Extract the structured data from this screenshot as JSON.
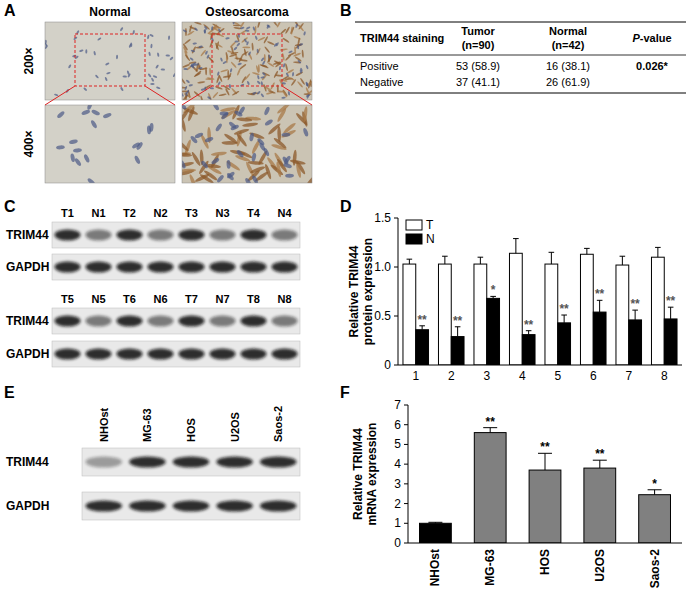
{
  "chart_data": [
    {
      "type": "bar",
      "panel": "D",
      "y_label": "Relative TRIM44 protein expression",
      "categories": [
        "1",
        "2",
        "3",
        "4",
        "5",
        "6",
        "7",
        "8"
      ],
      "series": [
        {
          "name": "T",
          "color": "#ffffff",
          "values": [
            1.03,
            1.03,
            1.03,
            1.14,
            1.03,
            1.13,
            1.02,
            1.1
          ],
          "errors": [
            0.05,
            0.08,
            0.07,
            0.15,
            0.12,
            0.06,
            0.09,
            0.1
          ]
        },
        {
          "name": "N",
          "color": "#000000",
          "values": [
            0.36,
            0.29,
            0.68,
            0.31,
            0.43,
            0.54,
            0.46,
            0.47
          ],
          "errors": [
            0.04,
            0.1,
            0.02,
            0.04,
            0.08,
            0.12,
            0.1,
            0.12
          ]
        }
      ],
      "annotations": [
        "**",
        "**",
        "*",
        "**",
        "**",
        "**",
        "**",
        "**"
      ],
      "ylim": [
        0,
        1.5
      ],
      "yticks": [
        0,
        0.5,
        {
          "value": 1,
          "label": "1.0"
        },
        1.5
      ],
      "legend": "upper left",
      "grid": false
    },
    {
      "type": "bar",
      "panel": "F",
      "y_label": "Relative TRIM44 mRNA expression",
      "categories": [
        "NHOst",
        "MG-63",
        "HOS",
        "U2OS",
        "Saos-2"
      ],
      "values": [
        1.0,
        5.6,
        3.7,
        3.8,
        2.45
      ],
      "errors": [
        0.05,
        0.25,
        0.85,
        0.4,
        0.25
      ],
      "colors": [
        "#000000",
        "#808080",
        "#808080",
        "#808080",
        "#808080"
      ],
      "annotations": [
        null,
        "**",
        "**",
        "**",
        "*"
      ],
      "ylim": [
        0,
        7
      ],
      "yticks": [
        0,
        1,
        2,
        3,
        4,
        5,
        6,
        7
      ],
      "grid": false
    }
  ],
  "panel_a": {
    "panel": "A",
    "columns": [
      "Normal",
      "Osteosarcoma"
    ],
    "rows": [
      "200×",
      "400×"
    ]
  },
  "panel_b": {
    "panel": "B",
    "table": {
      "header": [
        [
          "TRIM44 staining"
        ],
        [
          "Tumor",
          "(n=90)"
        ],
        [
          "Normal",
          "(n=42)"
        ],
        [
          "P-value"
        ]
      ],
      "rows": [
        [
          "Positive",
          "53 (58.9)",
          "16 (38.1)",
          "0.026*"
        ],
        [
          "Negative",
          "37 (41.1)",
          "26 (61.9)"
        ]
      ]
    }
  },
  "panel_c": {
    "panel": "C",
    "rows": [
      {
        "lanes": [
          "T1",
          "N1",
          "T2",
          "N2",
          "T3",
          "N3",
          "T4",
          "N4"
        ]
      },
      {
        "lanes": [
          "T5",
          "N5",
          "T6",
          "N6",
          "T7",
          "N7",
          "T8",
          "N8"
        ]
      }
    ],
    "bands": [
      "TRIM44",
      "GAPDH"
    ]
  },
  "panel_e": {
    "panel": "E",
    "lanes": [
      "NHOst",
      "MG-63",
      "HOS",
      "U2OS",
      "Saos-2"
    ],
    "bands": [
      "TRIM44",
      "GAPDH"
    ]
  }
}
